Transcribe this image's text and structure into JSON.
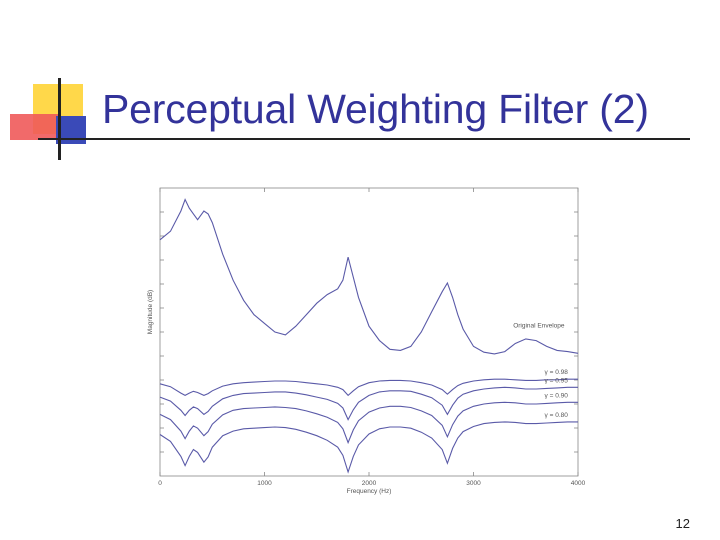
{
  "slide": {
    "title": "Perceptual Weighting Filter (2)",
    "page_number": "12"
  },
  "colors": {
    "title": "#33339a",
    "curve": "#5a5aa8",
    "logo_yellow": "#ffd84a",
    "logo_red": "#f05a5a",
    "logo_blue": "#3a4ab8"
  },
  "chart_data": {
    "type": "line",
    "xlabel": "Frequency (Hz)",
    "ylabel": "Magnitude (dB)",
    "x_ticks": [
      "0",
      "1000",
      "2000",
      "3000",
      "4000"
    ],
    "xlim": [
      0,
      4000
    ],
    "grid": false,
    "series": [
      {
        "name": "Original Envelope",
        "x": [
          0,
          100,
          200,
          240,
          280,
          320,
          360,
          420,
          460,
          500,
          600,
          700,
          800,
          900,
          1000,
          1100,
          1200,
          1300,
          1400,
          1500,
          1600,
          1700,
          1750,
          1800,
          1850,
          1900,
          2000,
          2100,
          2200,
          2300,
          2400,
          2500,
          2600,
          2700,
          2750,
          2800,
          2850,
          2900,
          3000,
          3100,
          3200,
          3300,
          3400,
          3500,
          3600,
          3700,
          3800,
          3900,
          4000
        ],
        "y": [
          24,
          25.5,
          29,
          31,
          29.5,
          28.5,
          27.5,
          29,
          28.5,
          27,
          21.5,
          17,
          13.5,
          11,
          9.5,
          8,
          7.5,
          9,
          11,
          13,
          14.5,
          15.5,
          17,
          21,
          17.5,
          14,
          9,
          6.5,
          5,
          4.8,
          5.5,
          8,
          11.5,
          15,
          16.5,
          14,
          11,
          8.5,
          5.5,
          4.5,
          4.2,
          4.6,
          6,
          6.8,
          6.5,
          5.5,
          4.8,
          4.6,
          4.3
        ]
      },
      {
        "name": "γ = 0.98",
        "x": [
          0,
          100,
          200,
          240,
          280,
          320,
          360,
          420,
          460,
          500,
          600,
          700,
          800,
          900,
          1000,
          1100,
          1200,
          1300,
          1400,
          1500,
          1600,
          1700,
          1750,
          1800,
          1850,
          1900,
          2000,
          2100,
          2200,
          2300,
          2400,
          2500,
          2600,
          2700,
          2750,
          2800,
          2850,
          2900,
          3000,
          3100,
          3200,
          3300,
          3400,
          3500,
          3600,
          3700,
          3800,
          3900,
          4000
        ],
        "y": [
          -1,
          -1.5,
          -2.6,
          -3,
          -2.6,
          -2.3,
          -2.5,
          -3,
          -2.7,
          -2.2,
          -1.4,
          -1,
          -0.8,
          -0.7,
          -0.6,
          -0.5,
          -0.5,
          -0.6,
          -0.8,
          -1,
          -1.2,
          -1.6,
          -2,
          -3,
          -2.2,
          -1.5,
          -0.8,
          -0.5,
          -0.4,
          -0.4,
          -0.5,
          -0.8,
          -1.2,
          -2,
          -2.8,
          -2,
          -1.3,
          -0.9,
          -0.5,
          -0.3,
          -0.2,
          -0.2,
          -0.3,
          -0.4,
          -0.4,
          -0.3,
          -0.3,
          -0.2,
          -0.2
        ]
      },
      {
        "name": "γ = 0.95",
        "x": [
          0,
          100,
          200,
          240,
          280,
          320,
          360,
          420,
          460,
          500,
          600,
          700,
          800,
          900,
          1000,
          1100,
          1200,
          1300,
          1400,
          1500,
          1600,
          1700,
          1750,
          1800,
          1850,
          1900,
          2000,
          2100,
          2200,
          2300,
          2400,
          2500,
          2600,
          2700,
          2750,
          2800,
          2850,
          2900,
          3000,
          3100,
          3200,
          3300,
          3400,
          3500,
          3600,
          3700,
          3800,
          3900,
          4000
        ],
        "y": [
          -3.3,
          -4,
          -5.6,
          -6.5,
          -5.6,
          -5,
          -5.3,
          -6.3,
          -5.8,
          -4.9,
          -3.6,
          -3,
          -2.7,
          -2.6,
          -2.5,
          -2.4,
          -2.4,
          -2.6,
          -2.9,
          -3.3,
          -3.7,
          -4.4,
          -5.2,
          -7.2,
          -5.5,
          -4.2,
          -3,
          -2.4,
          -2.2,
          -2.2,
          -2.3,
          -2.8,
          -3.4,
          -4.7,
          -6.3,
          -4.7,
          -3.5,
          -2.8,
          -2.2,
          -1.9,
          -1.7,
          -1.6,
          -1.7,
          -1.9,
          -1.9,
          -1.8,
          -1.7,
          -1.6,
          -1.6
        ]
      },
      {
        "name": "γ = 0.90",
        "x": [
          0,
          100,
          200,
          240,
          280,
          320,
          360,
          420,
          460,
          500,
          600,
          700,
          800,
          900,
          1000,
          1100,
          1200,
          1300,
          1400,
          1500,
          1600,
          1700,
          1750,
          1800,
          1850,
          1900,
          2000,
          2100,
          2200,
          2300,
          2400,
          2500,
          2600,
          2700,
          2750,
          2800,
          2850,
          2900,
          3000,
          3100,
          3200,
          3300,
          3400,
          3500,
          3600,
          3700,
          3800,
          3900,
          4000
        ],
        "y": [
          -6.3,
          -7.2,
          -9.2,
          -10.5,
          -9.2,
          -8.3,
          -8.7,
          -10,
          -9.3,
          -8,
          -6.4,
          -5.6,
          -5.3,
          -5.2,
          -5.1,
          -5,
          -5.1,
          -5.3,
          -5.7,
          -6.2,
          -6.8,
          -7.7,
          -8.8,
          -11.2,
          -9,
          -7.4,
          -5.9,
          -5.2,
          -4.9,
          -4.9,
          -5.1,
          -5.7,
          -6.5,
          -8.2,
          -10.2,
          -8.1,
          -6.6,
          -5.7,
          -4.9,
          -4.5,
          -4.3,
          -4.2,
          -4.3,
          -4.5,
          -4.5,
          -4.4,
          -4.3,
          -4.2,
          -4.2
        ]
      },
      {
        "name": "γ = 0.80",
        "x": [
          0,
          100,
          200,
          240,
          280,
          320,
          360,
          420,
          460,
          500,
          600,
          700,
          800,
          900,
          1000,
          1100,
          1200,
          1300,
          1400,
          1500,
          1600,
          1700,
          1750,
          1800,
          1850,
          1900,
          2000,
          2100,
          2200,
          2300,
          2400,
          2500,
          2600,
          2700,
          2750,
          2800,
          2850,
          2900,
          3000,
          3100,
          3200,
          3300,
          3400,
          3500,
          3600,
          3700,
          3800,
          3900,
          4000
        ],
        "y": [
          -9.8,
          -11,
          -13.6,
          -15.2,
          -13.6,
          -12.4,
          -12.9,
          -14.6,
          -13.7,
          -12,
          -10,
          -9.2,
          -8.8,
          -8.7,
          -8.6,
          -8.5,
          -8.6,
          -8.9,
          -9.4,
          -10,
          -10.8,
          -12,
          -13.4,
          -16.3,
          -13.6,
          -11.6,
          -9.7,
          -8.8,
          -8.5,
          -8.5,
          -8.7,
          -9.4,
          -10.4,
          -12.4,
          -14.8,
          -12.2,
          -10.4,
          -9.3,
          -8.4,
          -7.9,
          -7.7,
          -7.6,
          -7.7,
          -7.9,
          -7.9,
          -7.8,
          -7.7,
          -7.6,
          -7.6
        ]
      }
    ]
  }
}
